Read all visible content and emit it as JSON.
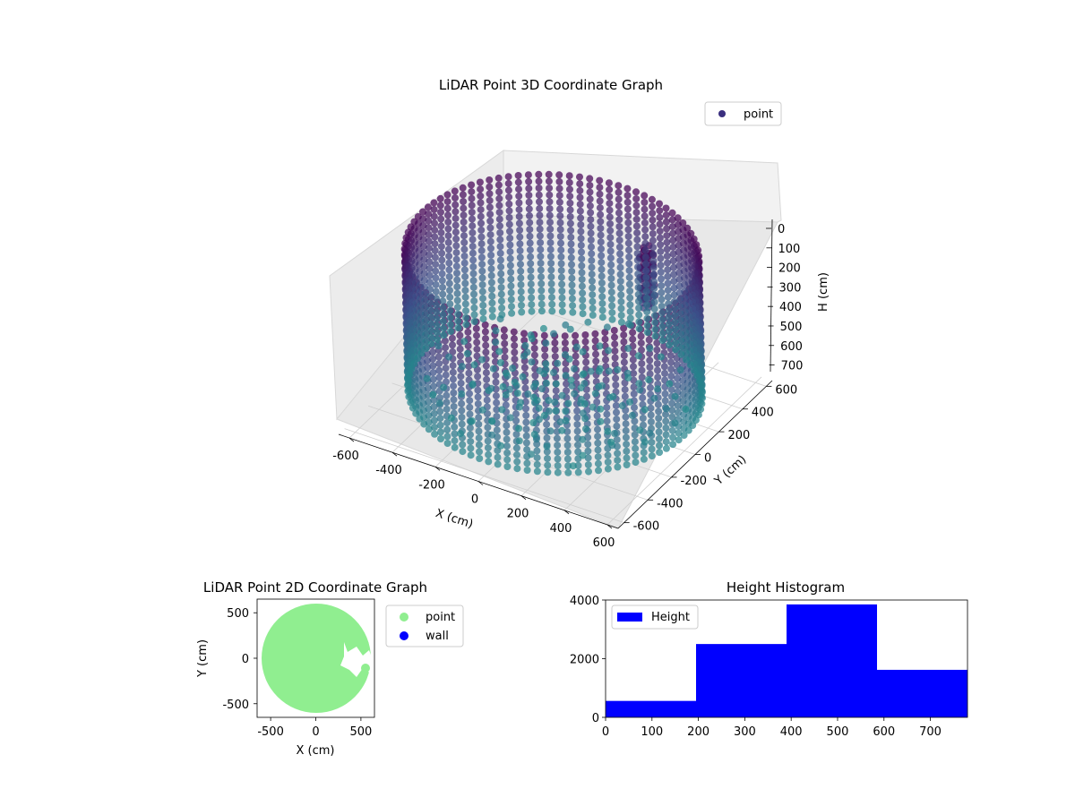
{
  "chart_data": [
    {
      "type": "scatter",
      "subtype": "3d",
      "title": "LiDAR Point 3D Coordinate Graph",
      "xlabel": "X (cm)",
      "ylabel": "Y (cm)",
      "zlabel": "H (cm)",
      "xlim": [
        -650,
        650
      ],
      "ylim": [
        -650,
        650
      ],
      "zlim": [
        0,
        780
      ],
      "z_inverted": true,
      "xticks": [
        "-600",
        "-400",
        "-200",
        "0",
        "200",
        "400",
        "600"
      ],
      "yticks": [
        "600",
        "400",
        "200",
        "0",
        "-200",
        "-400",
        "-600"
      ],
      "zticks": [
        "0",
        "100",
        "200",
        "300",
        "400",
        "500",
        "600",
        "700"
      ],
      "series": [
        {
          "name": "point",
          "marker": "circle",
          "color": "#3b2f7f"
        }
      ],
      "legend_position": "top-right",
      "shape": "cylindrical wall of points, radius about 600 cm, heights 0-700 cm, with an interior figure near x 300, y 250",
      "wall_radius": 600,
      "interior_cluster": {
        "x": 300,
        "y": 250,
        "h": [
          0,
          300
        ]
      },
      "grid": true,
      "colormap": [
        "#440154",
        "#3b528b",
        "#21918c"
      ]
    },
    {
      "type": "scatter",
      "title": "LiDAR Point 2D Coordinate Graph",
      "xlabel": "X (cm)",
      "ylabel": "Y (cm)",
      "xlim": [
        -650,
        650
      ],
      "ylim": [
        -650,
        650
      ],
      "xticks": [
        "-500",
        "0",
        "500"
      ],
      "yticks": [
        "500",
        "0",
        "-500"
      ],
      "series": [
        {
          "name": "point",
          "color": "#90ee90"
        },
        {
          "name": "wall",
          "color": "#0000ff"
        }
      ],
      "legend_position": "outside-right",
      "filled_region": "disk of radius about 600 cm with an empty notch near x 300, y 100"
    },
    {
      "type": "bar",
      "subtype": "histogram",
      "title": "Height Histogram",
      "bins": [
        [
          0,
          195
        ],
        [
          195,
          390
        ],
        [
          390,
          585
        ],
        [
          585,
          780
        ]
      ],
      "values": [
        560,
        2500,
        3850,
        1620
      ],
      "xlim": [
        0,
        780
      ],
      "ylim": [
        0,
        4000
      ],
      "xticks": [
        "0",
        "100",
        "200",
        "300",
        "400",
        "500",
        "600",
        "700"
      ],
      "yticks": [
        "0",
        "2000",
        "4000"
      ],
      "series": [
        {
          "name": "Height",
          "color": "#0000ff"
        }
      ],
      "legend_position": "top-left",
      "grid": false
    }
  ]
}
